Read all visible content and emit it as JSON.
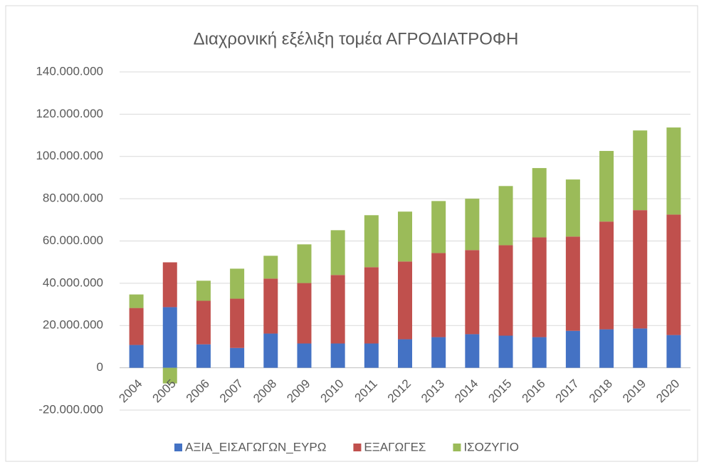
{
  "chart_data": {
    "type": "stacked_bar",
    "title": "Διαχρονική εξέλιξη τομέα  ΑΓΡΟΔΙΑΤΡΟΦΗ",
    "categories": [
      "2004",
      "2005",
      "2006",
      "2007",
      "2008",
      "2009",
      "2010",
      "2011",
      "2012",
      "2013",
      "2014",
      "2015",
      "2016",
      "2017",
      "2018",
      "2019",
      "2020"
    ],
    "series": [
      {
        "name": "ΑΞΙΑ_ΕΙΣΑΓΩΓΩΝ_ΕΥΡΩ",
        "color": "#4472c4",
        "values": [
          10800000,
          28700000,
          11100000,
          9400000,
          16200000,
          11500000,
          11500000,
          11500000,
          13500000,
          14500000,
          15900000,
          15200000,
          14500000,
          17500000,
          18200000,
          18600000,
          15500000
        ]
      },
      {
        "name": "ΕΞΑΓΩΓΕΣ",
        "color": "#c0504d",
        "values": [
          17500000,
          21200000,
          20600000,
          23300000,
          26000000,
          28600000,
          32400000,
          36100000,
          36800000,
          39800000,
          39800000,
          42800000,
          47200000,
          44600000,
          51000000,
          56000000,
          57000000
        ]
      },
      {
        "name": "ΙΣΟΖΥΓΙΟ",
        "color": "#9bbb59",
        "values": [
          6400000,
          -7400000,
          9500000,
          14200000,
          10800000,
          18300000,
          21200000,
          24600000,
          23600000,
          24600000,
          24300000,
          28000000,
          32800000,
          27000000,
          33400000,
          37700000,
          41200000
        ]
      }
    ],
    "ylim": [
      -20000000,
      140000000
    ],
    "yticks": [
      {
        "value": -20000000,
        "label": "-20.000.000"
      },
      0,
      {
        "value": 20000000,
        "label": "20.000.000"
      },
      {
        "value": 40000000,
        "label": "40.000.000"
      },
      {
        "value": 60000000,
        "label": "60.000.000"
      },
      {
        "value": 80000000,
        "label": "80.000.000"
      },
      {
        "value": 100000000,
        "label": "100.000.000"
      },
      {
        "value": 120000000,
        "label": "120.000.000"
      },
      {
        "value": 140000000,
        "label": "140.000.000"
      }
    ],
    "grid": true,
    "legend": "bottom"
  }
}
